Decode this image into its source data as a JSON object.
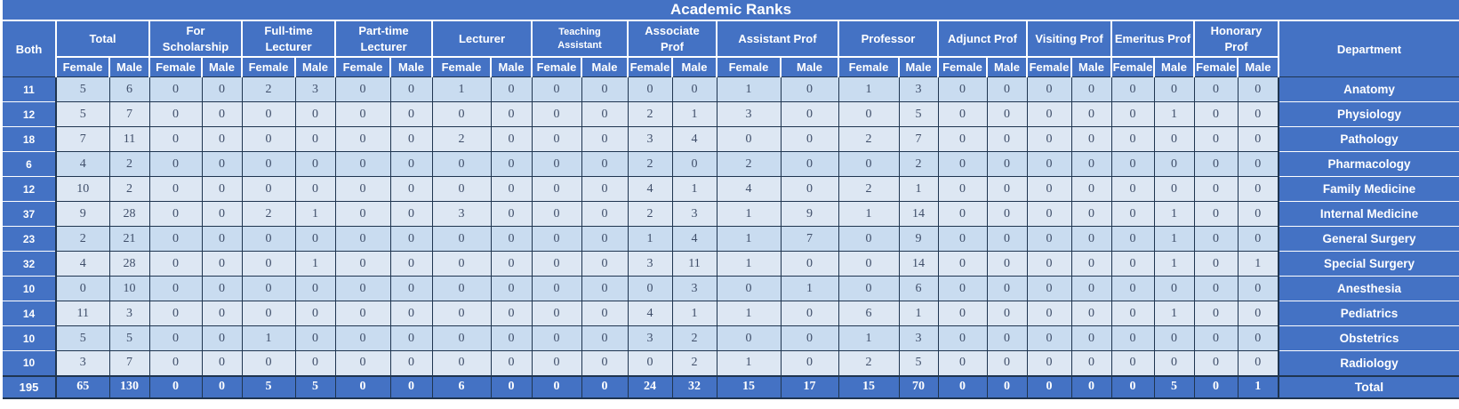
{
  "title": "Academic Ranks",
  "columns": {
    "both_label": "Both",
    "department_label": "Department",
    "sub_labels": [
      "Female",
      "Male"
    ],
    "groups": [
      {
        "label": "Total"
      },
      {
        "label": "For Scholarship"
      },
      {
        "label": "Full-time Lecturer"
      },
      {
        "label": "Part-time Lecturer"
      },
      {
        "label": "Lecturer"
      },
      {
        "label": "Teaching Assistant"
      },
      {
        "label": "Associate Prof"
      },
      {
        "label": "Assistant Prof"
      },
      {
        "label": "Professor"
      },
      {
        "label": "Adjunct Prof"
      },
      {
        "label": "Visiting Prof"
      },
      {
        "label": "Emeritus Prof"
      },
      {
        "label": "Honorary Prof"
      }
    ]
  },
  "rows": [
    {
      "both": "11",
      "department": "Anatomy",
      "values": [
        5,
        6,
        0,
        0,
        2,
        3,
        0,
        0,
        1,
        0,
        0,
        0,
        0,
        0,
        1,
        0,
        1,
        3,
        0,
        0,
        0,
        0,
        0,
        0,
        0,
        0
      ]
    },
    {
      "both": "12",
      "department": "Physiology",
      "values": [
        5,
        7,
        0,
        0,
        0,
        0,
        0,
        0,
        0,
        0,
        0,
        0,
        2,
        1,
        3,
        0,
        0,
        5,
        0,
        0,
        0,
        0,
        0,
        1,
        0,
        0
      ]
    },
    {
      "both": "18",
      "department": "Pathology",
      "values": [
        7,
        11,
        0,
        0,
        0,
        0,
        0,
        0,
        2,
        0,
        0,
        0,
        3,
        4,
        0,
        0,
        2,
        7,
        0,
        0,
        0,
        0,
        0,
        0,
        0,
        0
      ]
    },
    {
      "both": "6",
      "department": "Pharmacology",
      "values": [
        4,
        2,
        0,
        0,
        0,
        0,
        0,
        0,
        0,
        0,
        0,
        0,
        2,
        0,
        2,
        0,
        0,
        2,
        0,
        0,
        0,
        0,
        0,
        0,
        0,
        0
      ]
    },
    {
      "both": "12",
      "department": "Family Medicine",
      "values": [
        10,
        2,
        0,
        0,
        0,
        0,
        0,
        0,
        0,
        0,
        0,
        0,
        4,
        1,
        4,
        0,
        2,
        1,
        0,
        0,
        0,
        0,
        0,
        0,
        0,
        0
      ]
    },
    {
      "both": "37",
      "department": "Internal Medicine",
      "values": [
        9,
        28,
        0,
        0,
        2,
        1,
        0,
        0,
        3,
        0,
        0,
        0,
        2,
        3,
        1,
        9,
        1,
        14,
        0,
        0,
        0,
        0,
        0,
        1,
        0,
        0
      ]
    },
    {
      "both": "23",
      "department": "General Surgery",
      "values": [
        2,
        21,
        0,
        0,
        0,
        0,
        0,
        0,
        0,
        0,
        0,
        0,
        1,
        4,
        1,
        7,
        0,
        9,
        0,
        0,
        0,
        0,
        0,
        1,
        0,
        0
      ]
    },
    {
      "both": "32",
      "department": "Special Surgery",
      "values": [
        4,
        28,
        0,
        0,
        0,
        1,
        0,
        0,
        0,
        0,
        0,
        0,
        3,
        11,
        1,
        0,
        0,
        14,
        0,
        0,
        0,
        0,
        0,
        1,
        0,
        1
      ]
    },
    {
      "both": "10",
      "department": "Anesthesia",
      "values": [
        0,
        10,
        0,
        0,
        0,
        0,
        0,
        0,
        0,
        0,
        0,
        0,
        0,
        3,
        0,
        1,
        0,
        6,
        0,
        0,
        0,
        0,
        0,
        0,
        0,
        0
      ]
    },
    {
      "both": "14",
      "department": "Pediatrics",
      "values": [
        11,
        3,
        0,
        0,
        0,
        0,
        0,
        0,
        0,
        0,
        0,
        0,
        4,
        1,
        1,
        0,
        6,
        1,
        0,
        0,
        0,
        0,
        0,
        1,
        0,
        0
      ]
    },
    {
      "both": "10",
      "department": "Obstetrics",
      "values": [
        5,
        5,
        0,
        0,
        1,
        0,
        0,
        0,
        0,
        0,
        0,
        0,
        3,
        2,
        0,
        0,
        1,
        3,
        0,
        0,
        0,
        0,
        0,
        0,
        0,
        0
      ]
    },
    {
      "both": "10",
      "department": "Radiology",
      "values": [
        3,
        7,
        0,
        0,
        0,
        0,
        0,
        0,
        0,
        0,
        0,
        0,
        0,
        2,
        1,
        0,
        2,
        5,
        0,
        0,
        0,
        0,
        0,
        0,
        0,
        0
      ]
    }
  ],
  "total_row": {
    "both": "195",
    "department": "Total",
    "values": [
      65,
      130,
      0,
      0,
      5,
      5,
      0,
      0,
      6,
      0,
      0,
      0,
      24,
      32,
      15,
      17,
      15,
      70,
      0,
      0,
      0,
      0,
      0,
      5,
      0,
      1
    ]
  },
  "colors": {
    "accent_blue": "#4472c4",
    "band_dark": "#c9dcf0",
    "band_light": "#dde7f3",
    "grid_line": "#1f3550",
    "number_text": "#3f4e69",
    "header_text": "#ffffff"
  }
}
